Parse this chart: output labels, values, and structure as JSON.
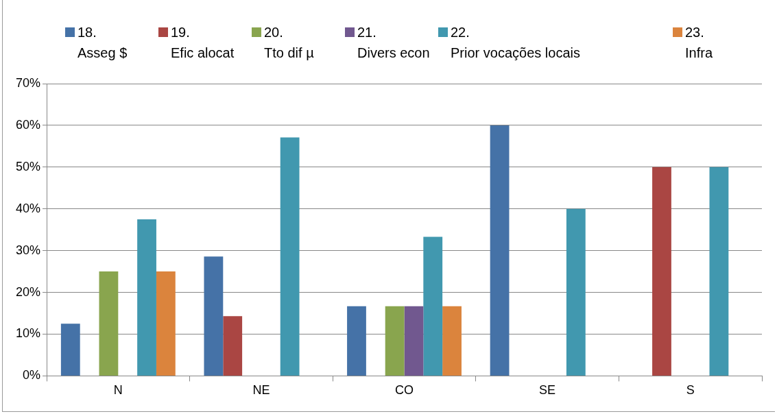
{
  "chart_data": {
    "type": "bar",
    "categories": [
      "N",
      "NE",
      "CO",
      "SE",
      "S"
    ],
    "series": [
      {
        "name": "18.\nAsseg  $",
        "color": "#4572a7",
        "values": [
          12.5,
          28.6,
          16.7,
          60,
          0
        ]
      },
      {
        "name": "19.\nEfic alocat",
        "color": "#aa4643",
        "values": [
          0,
          14.3,
          0,
          0,
          50
        ]
      },
      {
        "name": "20.\nTto dif µ",
        "color": "#89a54e",
        "values": [
          25,
          0,
          16.7,
          0,
          0
        ]
      },
      {
        "name": "21.\nDivers econ",
        "color": "#71588f",
        "values": [
          0,
          0,
          16.7,
          0,
          0
        ]
      },
      {
        "name": "22.\nPrior vocações locais",
        "color": "#4198af",
        "values": [
          37.5,
          57.1,
          33.3,
          40,
          50
        ]
      },
      {
        "name": "23.\nInfra",
        "color": "#db843d",
        "values": [
          25,
          0,
          16.7,
          0,
          0
        ]
      }
    ],
    "ylim": [
      0,
      70
    ],
    "yticks": [
      {
        "value": 0,
        "label": "0%"
      },
      {
        "value": 10,
        "label": "10%"
      },
      {
        "value": 20,
        "label": "20%"
      },
      {
        "value": 30,
        "label": "30%"
      },
      {
        "value": 40,
        "label": "40%"
      },
      {
        "value": 50,
        "label": "50%"
      },
      {
        "value": 60,
        "label": "60%"
      },
      {
        "value": 70,
        "label": "70%"
      }
    ],
    "grid": "y",
    "legend": "top"
  }
}
